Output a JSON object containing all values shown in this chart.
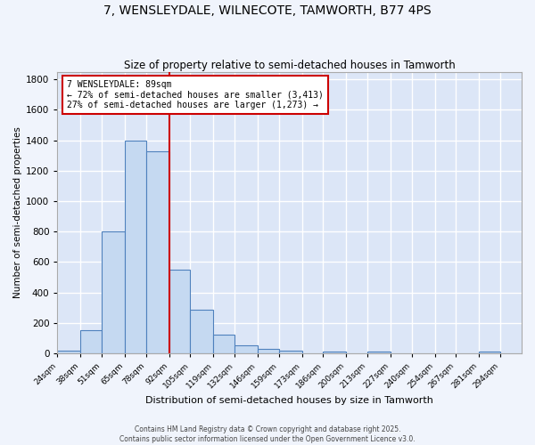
{
  "title1": "7, WENSLEYDALE, WILNECOTE, TAMWORTH, B77 4PS",
  "title2": "Size of property relative to semi-detached houses in Tamworth",
  "xlabel": "Distribution of semi-detached houses by size in Tamworth",
  "ylabel": "Number of semi-detached properties",
  "categories": [
    "24sqm",
    "38sqm",
    "51sqm",
    "65sqm",
    "78sqm",
    "92sqm",
    "105sqm",
    "119sqm",
    "132sqm",
    "146sqm",
    "159sqm",
    "173sqm",
    "186sqm",
    "200sqm",
    "213sqm",
    "227sqm",
    "240sqm",
    "254sqm",
    "267sqm",
    "281sqm",
    "294sqm"
  ],
  "values": [
    15,
    150,
    800,
    1400,
    1330,
    550,
    285,
    120,
    50,
    30,
    15,
    0,
    10,
    0,
    10,
    0,
    0,
    0,
    0,
    10,
    0
  ],
  "bar_color": "#c5d9f1",
  "bar_edge_color": "#4f81bd",
  "fig_bg_color": "#f0f4fc",
  "ax_bg_color": "#dce6f7",
  "grid_color": "#ffffff",
  "property_line_x": 92,
  "bin_edges": [
    24,
    38,
    51,
    65,
    78,
    92,
    105,
    119,
    132,
    146,
    159,
    173,
    186,
    200,
    213,
    227,
    240,
    254,
    267,
    281,
    294,
    307
  ],
  "annotation_text": "7 WENSLEYDALE: 89sqm\n← 72% of semi-detached houses are smaller (3,413)\n27% of semi-detached houses are larger (1,273) →",
  "annotation_box_color": "#ffffff",
  "annotation_box_edge": "#cc0000",
  "vline_color": "#cc0000",
  "ylim": [
    0,
    1850
  ],
  "yticks": [
    0,
    200,
    400,
    600,
    800,
    1000,
    1200,
    1400,
    1600,
    1800
  ],
  "footer1": "Contains HM Land Registry data © Crown copyright and database right 2025.",
  "footer2": "Contains public sector information licensed under the Open Government Licence v3.0."
}
